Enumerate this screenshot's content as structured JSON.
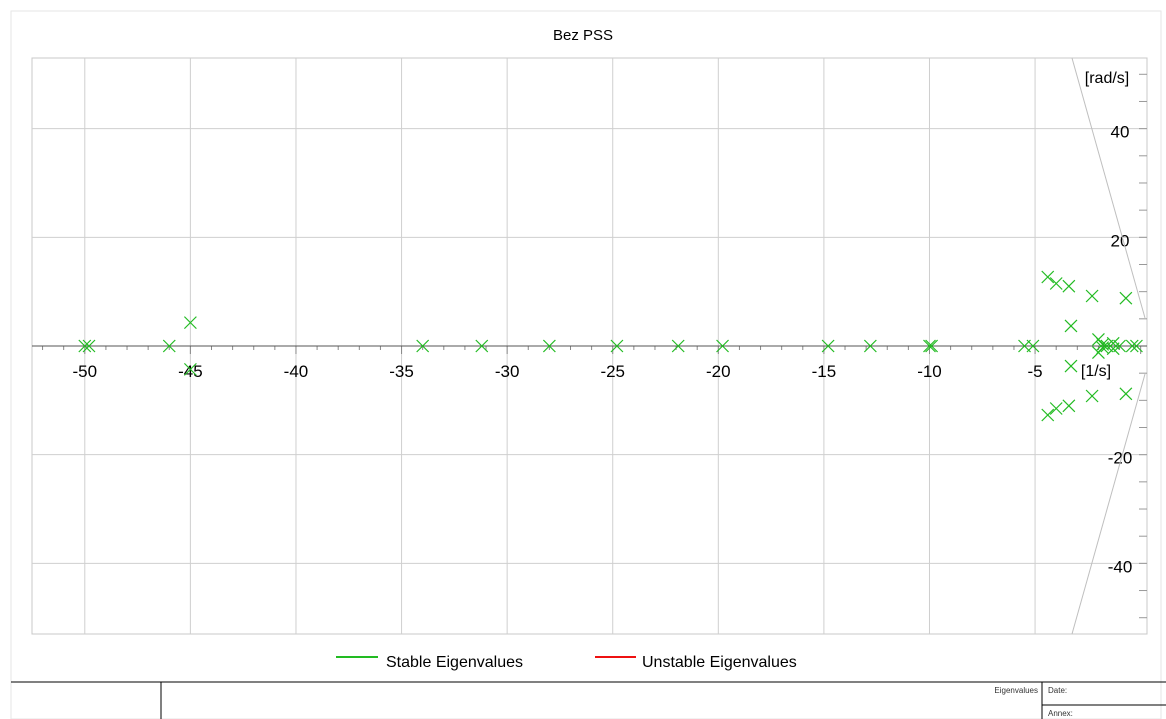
{
  "chart_data": {
    "type": "scatter",
    "title": "Bez PSS",
    "xlabel": "[1/s]",
    "ylabel": "[rad/s]",
    "xlim": [
      -52.5,
      0.3
    ],
    "ylim": [
      -53,
      53
    ],
    "x_ticks": [
      -50,
      -45,
      -40,
      -35,
      -30,
      -25,
      -20,
      -15,
      -10,
      -5
    ],
    "x_tick_labels": [
      "-50",
      "-45",
      "-40",
      "-35",
      "-30",
      "-25",
      "-20",
      "-15",
      "-10",
      "-5"
    ],
    "y_ticks": [
      -40,
      -20,
      20,
      40
    ],
    "y_tick_labels": [
      "-40",
      "-20",
      "20",
      "40"
    ],
    "grid": true,
    "legend_position": "bottom",
    "series": [
      {
        "name": "Stable Eigenvalues",
        "color": "#22bb22",
        "points": [
          [
            -50.0,
            0
          ],
          [
            -49.8,
            0
          ],
          [
            -46.0,
            0
          ],
          [
            -45.0,
            4.3
          ],
          [
            -45.0,
            -4.3
          ],
          [
            -34.0,
            0
          ],
          [
            -31.2,
            0
          ],
          [
            -28.0,
            0
          ],
          [
            -24.8,
            0
          ],
          [
            -21.9,
            0
          ],
          [
            -19.8,
            0
          ],
          [
            -14.8,
            0
          ],
          [
            -12.8,
            0
          ],
          [
            -10.0,
            0
          ],
          [
            -9.9,
            0
          ],
          [
            -5.5,
            0
          ],
          [
            -5.1,
            0
          ],
          [
            -4.4,
            12.7
          ],
          [
            -4.4,
            -12.7
          ],
          [
            -4.0,
            11.5
          ],
          [
            -4.0,
            -11.5
          ],
          [
            -3.4,
            11.0
          ],
          [
            -3.4,
            -11.0
          ],
          [
            -3.3,
            3.7
          ],
          [
            -3.3,
            -3.7
          ],
          [
            -2.3,
            9.2
          ],
          [
            -2.3,
            -9.2
          ],
          [
            -2.0,
            1.2
          ],
          [
            -2.0,
            -1.2
          ],
          [
            -1.8,
            0.3
          ],
          [
            -1.8,
            -0.3
          ],
          [
            -1.6,
            0
          ],
          [
            -1.3,
            0.5
          ],
          [
            -1.3,
            -0.5
          ],
          [
            -1.0,
            0
          ],
          [
            -0.7,
            8.8
          ],
          [
            -0.7,
            -8.8
          ],
          [
            -0.4,
            0
          ],
          [
            -0.2,
            0
          ]
        ]
      },
      {
        "name": "Unstable Eigenvalues",
        "color": "#ee1111",
        "points": []
      }
    ]
  },
  "footer": {
    "type_label": "Eigenvalues",
    "date_label": "Date:",
    "annex_label": "Annex:"
  }
}
